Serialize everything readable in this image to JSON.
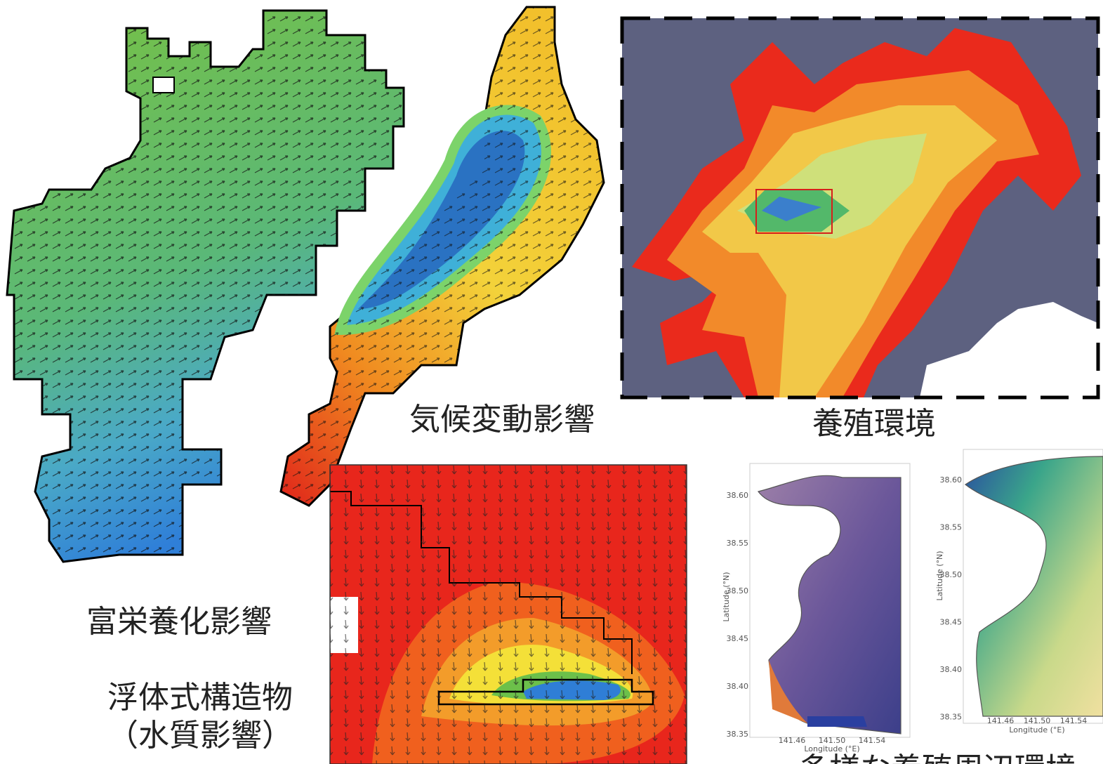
{
  "labels": {
    "climate": "気候変動影響",
    "aquaculture": "養殖環境",
    "eutrophication": "富栄養化影響",
    "floating": "浮体式構造物",
    "floating_sub": "（水質影響）",
    "diverse": "多様な養殖周辺環境"
  },
  "small_maps": [
    {
      "lat_ticks": [
        "38.60",
        "38.55",
        "38.50",
        "38.45",
        "38.40",
        "38.35"
      ],
      "lon_ticks": [
        "141.46",
        "141.50",
        "141.54"
      ],
      "x_axis_title": "Longitude (°E)",
      "y_axis_title": "Latitude (°N)"
    },
    {
      "lat_ticks": [
        "38.60",
        "38.55",
        "38.50",
        "38.45",
        "38.40",
        "38.35"
      ],
      "lon_ticks": [
        "141.46",
        "141.50",
        "141.54"
      ],
      "x_axis_title": "Longitude (°E)",
      "y_axis_title": "Latitude (°N)"
    }
  ]
}
